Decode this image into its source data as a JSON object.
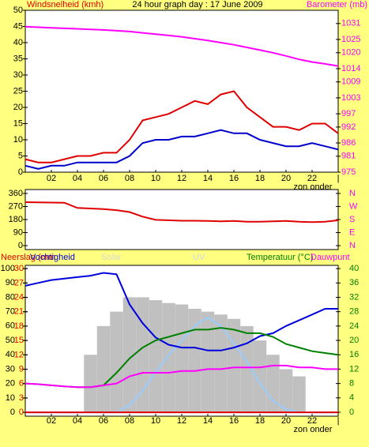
{
  "chart_data": [
    {
      "type": "line",
      "title": "24 hour graph day : 17 June 2009",
      "y_label": "Windsnelheid (kmh)",
      "y2_label": "Barometer (mb)",
      "annotation": "zon onder",
      "x": [
        0,
        1,
        2,
        3,
        4,
        5,
        6,
        7,
        8,
        9,
        10,
        11,
        12,
        13,
        14,
        15,
        16,
        17,
        18,
        19,
        20,
        21,
        22,
        23,
        24
      ],
      "xlim": [
        0,
        24
      ],
      "xticks": [
        {
          "value": 2,
          "label": "02"
        },
        {
          "value": 4,
          "label": "04"
        },
        {
          "value": 6,
          "label": "06"
        },
        {
          "value": 8,
          "label": "08"
        },
        10,
        12,
        14,
        16,
        18,
        20,
        22,
        {
          "value": 24,
          "label": "|"
        }
      ],
      "ylim": [
        0,
        50
      ],
      "yticks": [
        0,
        5,
        10,
        15,
        20,
        25,
        30,
        35,
        40,
        45,
        50
      ],
      "ycolor": "#000000",
      "y2lim": [
        975,
        1036
      ],
      "y2ticks": [
        975,
        981,
        986,
        992,
        997,
        1003,
        1009,
        1014,
        1020,
        1025,
        1031
      ],
      "y2color": "#ff00ff",
      "series": [
        {
          "color": "#e00000",
          "values": [
            4,
            3,
            3,
            4,
            5,
            5,
            6,
            6,
            10,
            16,
            17,
            18,
            20,
            22,
            21,
            24,
            25,
            20,
            17,
            14,
            14,
            13,
            15,
            15,
            12
          ]
        },
        {
          "color": "#0000cc",
          "values": [
            2,
            1,
            2,
            2,
            3,
            3,
            3,
            3,
            5,
            9,
            10,
            10,
            11,
            11,
            12,
            13,
            12,
            12,
            10,
            9,
            8,
            8,
            9,
            8,
            7
          ]
        },
        {
          "color": "#ff00ff",
          "axis": "y2",
          "values": [
            1029.8,
            1029.6,
            1029.4,
            1029.2,
            1029,
            1028.8,
            1028.6,
            1028.3,
            1028,
            1027.5,
            1027,
            1026.5,
            1026,
            1025.3,
            1024.6,
            1023.8,
            1023,
            1022,
            1021,
            1020,
            1018.8,
            1017.5,
            1016.5,
            1015.8,
            1015
          ]
        }
      ]
    },
    {
      "type": "line",
      "x": [
        0,
        1,
        2,
        3,
        4,
        5,
        6,
        7,
        8,
        9,
        10,
        11,
        12,
        13,
        14,
        15,
        16,
        17,
        18,
        19,
        20,
        21,
        22,
        23,
        24
      ],
      "xlim": [
        0,
        24
      ],
      "ylim": [
        -27,
        387
      ],
      "yticks": [
        0,
        90,
        180,
        270,
        360
      ],
      "ycolor": "#000000",
      "y2lim": [
        -27,
        387
      ],
      "y2ticks": [
        {
          "value": 0,
          "label": "N"
        },
        {
          "value": 90,
          "label": "E"
        },
        {
          "value": 180,
          "label": "S"
        },
        {
          "value": 270,
          "label": "W"
        },
        {
          "value": 360,
          "label": "N"
        }
      ],
      "y2color": "#ff00ff",
      "series": [
        {
          "color": "#e00000",
          "values": [
            300,
            298,
            297,
            296,
            260,
            256,
            252,
            245,
            232,
            200,
            178,
            175,
            172,
            172,
            170,
            168,
            170,
            165,
            165,
            168,
            170,
            165,
            162,
            165,
            175
          ]
        }
      ]
    },
    {
      "type": "line",
      "annotation": "zon onder",
      "x": [
        0,
        1,
        2,
        3,
        4,
        5,
        6,
        7,
        8,
        9,
        10,
        11,
        12,
        13,
        14,
        15,
        16,
        17,
        18,
        19,
        20,
        21,
        22,
        23,
        24
      ],
      "xlim": [
        0,
        24
      ],
      "xticks": [
        {
          "value": 2,
          "label": "02"
        },
        {
          "value": 4,
          "label": "04"
        },
        {
          "value": 6,
          "label": "06"
        },
        {
          "value": 8,
          "label": "08"
        },
        10,
        12,
        14,
        16,
        18,
        20,
        22,
        {
          "value": 24,
          "label": "|"
        }
      ],
      "ylim": [
        -2.7,
        102.2
      ],
      "yticks": [
        0,
        10,
        20,
        30,
        40,
        50,
        60,
        70,
        80,
        90,
        100
      ],
      "ycolor": "#000000",
      "y2lim": [
        -1.1,
        40.9
      ],
      "y2ticks": [
        0,
        4,
        8,
        12,
        16,
        20,
        24,
        28,
        32,
        36,
        40
      ],
      "y2color": "#008000",
      "y3lim": [
        -0.8,
        30.7
      ],
      "y3ticks": [
        0,
        3,
        6,
        9,
        12,
        15,
        18,
        21,
        24,
        27,
        30
      ],
      "y3color": "#e00000",
      "series": [
        {
          "name": "Solar",
          "type": "bar",
          "color": "#c0c0c0",
          "values": [
            0,
            0,
            0,
            0,
            0,
            40,
            60,
            70,
            80,
            80,
            78,
            76,
            75,
            72,
            70,
            68,
            65,
            60,
            50,
            40,
            30,
            25,
            0,
            0,
            0
          ]
        },
        {
          "name": "UV",
          "color": "#99ccff",
          "values": [
            0,
            0,
            0,
            0,
            0,
            0,
            0,
            0,
            5,
            15,
            28,
            40,
            50,
            60,
            66,
            60,
            48,
            35,
            20,
            8,
            2,
            0,
            0,
            0,
            0
          ]
        },
        {
          "name": "Neerslag (mm",
          "color": "#e00000",
          "axis": "y3",
          "values": [
            0,
            0,
            0,
            0,
            0,
            0,
            0,
            0,
            0,
            0,
            0,
            0,
            0,
            0,
            0,
            0,
            0,
            0,
            0,
            0,
            0,
            0,
            0,
            0,
            0
          ]
        },
        {
          "name": "Vochtigheid",
          "color": "#0000dd",
          "values": [
            88,
            90,
            92,
            93,
            94,
            95,
            97,
            96,
            75,
            62,
            52,
            47,
            45,
            45,
            43,
            43,
            45,
            48,
            53,
            55,
            60,
            64,
            68,
            72,
            72
          ]
        },
        {
          "name": "Temperatuur (°C)",
          "color": "#008000",
          "axis": "y2",
          "values": [
            8,
            7.8,
            7.5,
            7.2,
            7,
            7,
            7.5,
            11,
            15,
            18,
            20,
            21,
            22,
            23,
            23,
            23.5,
            23,
            22,
            22,
            21,
            19,
            18,
            17,
            16.5,
            16
          ]
        },
        {
          "name": "Dauwpunt",
          "color": "#ff00ff",
          "axis": "y2",
          "values": [
            8,
            7.8,
            7.5,
            7.2,
            7,
            7,
            7.5,
            8,
            10,
            11,
            11,
            11,
            11.5,
            11.5,
            12,
            12,
            12.5,
            12.5,
            12.5,
            13,
            13,
            12.5,
            12.5,
            12,
            12
          ]
        }
      ]
    }
  ]
}
